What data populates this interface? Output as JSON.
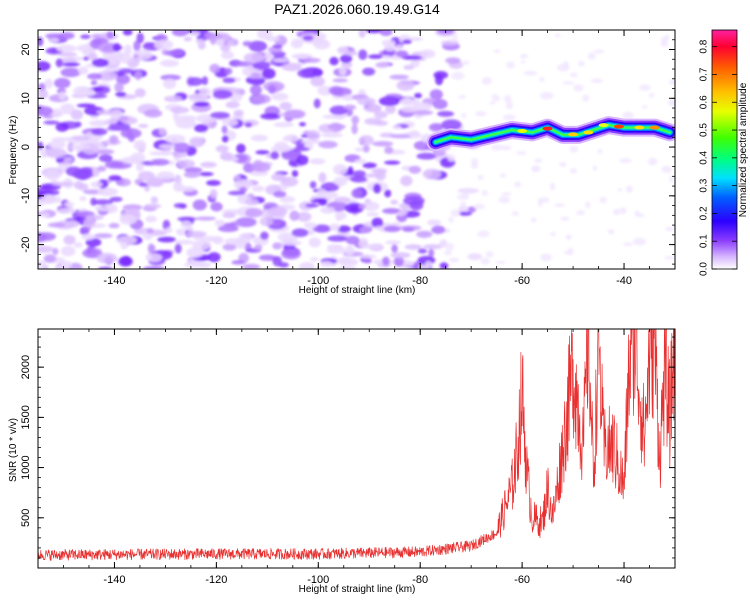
{
  "title": "PAZ1.2026.060.19.49.G14",
  "chart_data": [
    {
      "type": "heatmap",
      "name": "spectrogram",
      "xlabel": "Height of straight line (km)",
      "ylabel": "Frequency (Hz)",
      "xlim": [
        -155,
        -30
      ],
      "ylim": [
        -25,
        24
      ],
      "x_ticks": [
        -140,
        -120,
        -100,
        -80,
        -60,
        -40
      ],
      "y_ticks": [
        -20,
        -10,
        0,
        10,
        20
      ],
      "ridge_x": [
        -77,
        -74,
        -70,
        -66,
        -62,
        -58,
        -55,
        -52,
        -49,
        -46,
        -43,
        -40,
        -37,
        -34,
        -31
      ],
      "ridge_freq": [
        1,
        2,
        1.5,
        2.5,
        3.5,
        3,
        4,
        2.5,
        2.5,
        3.5,
        4.5,
        4,
        4,
        4,
        3
      ],
      "colorbar": {
        "label": "Normalized spectral amplitude",
        "ticks": [
          0.0,
          0.1,
          0.2,
          0.3,
          0.4,
          0.5,
          0.6,
          0.7,
          0.8
        ],
        "range": [
          0.0,
          0.86
        ]
      }
    },
    {
      "type": "line",
      "name": "snr",
      "xlabel": "Height of straight line (km)",
      "ylabel": "SNR (10 * v/v)",
      "xlim": [
        -155,
        -30
      ],
      "ylim": [
        0,
        2380
      ],
      "x_ticks": [
        -140,
        -120,
        -100,
        -80,
        -60,
        -40
      ],
      "y_ticks": [
        500,
        1000,
        1500,
        2000
      ],
      "color": "#e83030",
      "trend_x": [
        -155,
        -120,
        -100,
        -80,
        -70,
        -65,
        -62,
        -61,
        -60,
        -59,
        -58,
        -56,
        -55,
        -54,
        -52,
        -50,
        -48,
        -47,
        -46,
        -45,
        -44,
        -42,
        -40,
        -39,
        -38,
        -37,
        -36,
        -35,
        -34,
        -33,
        -32,
        -31,
        -30
      ],
      "trend_y": [
        130,
        140,
        140,
        160,
        220,
        350,
        800,
        1150,
        1750,
        900,
        500,
        450,
        800,
        500,
        1200,
        2000,
        1200,
        2350,
        900,
        2250,
        1200,
        1200,
        800,
        2000,
        2350,
        1800,
        1300,
        2100,
        2300,
        1100,
        2000,
        1500,
        2350
      ]
    }
  ]
}
